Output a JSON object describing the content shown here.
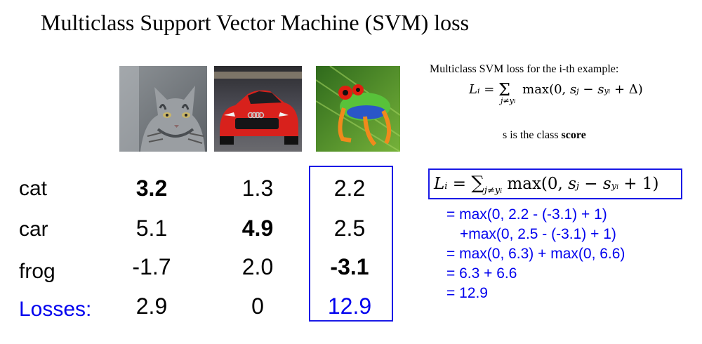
{
  "title": "Multiclass Support Vector Machine (SVM) loss",
  "images": [
    {
      "alt": "cat"
    },
    {
      "alt": "car"
    },
    {
      "alt": "frog"
    }
  ],
  "table": {
    "row_labels": [
      "cat",
      "car",
      "frog"
    ],
    "losses_label": "Losses:",
    "scores": [
      [
        "3.2",
        "1.3",
        "2.2"
      ],
      [
        "5.1",
        "4.9",
        "2.5"
      ],
      [
        "-1.7",
        "2.0",
        "-3.1"
      ]
    ],
    "losses": [
      "2.9",
      "0",
      "12.9"
    ]
  },
  "sidebar": {
    "caption": "Multiclass SVM loss for the i-th example:",
    "formula": "L_i = Σ_{j≠y_i} max(0, s_j − s_{y_i} + Δ)",
    "score_note_prefix": "s is the class ",
    "score_note_bold": "score"
  },
  "boxed_formula": "L_i = Σ_{j≠y_i} max(0, s_j − s_{y_i} + 1)",
  "calculation": [
    "= max(0, 2.2 - (-3.1) + 1)",
    "+max(0, 2.5 - (-3.1) + 1)",
    "= max(0, 6.3) + max(0, 6.6)",
    "= 6.3 + 6.6",
    "= 12.9"
  ],
  "colors": {
    "accent_blue": "#0000ee",
    "box_border": "#1a1ae6"
  }
}
